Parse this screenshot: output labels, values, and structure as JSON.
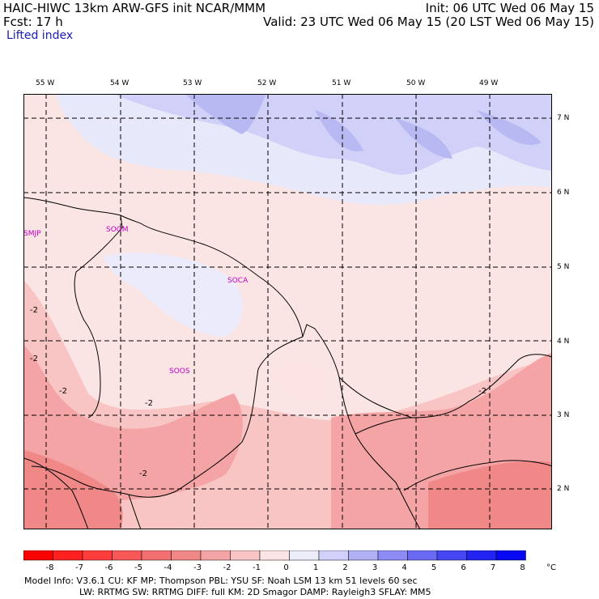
{
  "header": {
    "line1_left": "HAIC-HIWC 13km ARW-GFS init   NCAR/MMM",
    "line2_left": "Fcst:    17 h",
    "line1_right": "Init: 06 UTC Wed 06 May 15",
    "line2_right": "Valid: 23 UTC Wed 06 May 15 (20 LST Wed 06 May 15)",
    "field_name": "Lifted index"
  },
  "map": {
    "lon_labels": [
      "55 W",
      "54 W",
      "53 W",
      "52 W",
      "51 W",
      "50 W",
      "49 W"
    ],
    "lat_labels": [
      "7 N",
      "6 N",
      "5 N",
      "4 N",
      "3 N",
      "2 N"
    ],
    "stations": [
      "SMJP",
      "SOGM",
      "SOCA",
      "SOOS"
    ],
    "contour_labels": [
      "-2",
      "-2",
      "-2",
      "-2",
      "-2",
      "-2"
    ],
    "colors": {
      "grid": "#000000",
      "coast": "#000000",
      "station": "#c000c0"
    }
  },
  "colorbar": {
    "tick_labels": [
      "-8",
      "-7",
      "-6",
      "-5",
      "-4",
      "-3",
      "-2",
      "-1",
      "0",
      "1",
      "2",
      "3",
      "4",
      "5",
      "6",
      "7",
      "8"
    ],
    "unit": "°C",
    "colors": [
      "#ff0000",
      "#ff2020",
      "#ff3c3c",
      "#f85858",
      "#f47070",
      "#f08888",
      "#f4a4a4",
      "#f8c4c4",
      "#fde4e4",
      "#ececfb",
      "#d0d0fa",
      "#b0b0f6",
      "#8c8cf4",
      "#6a6af2",
      "#4646f2",
      "#2424f2",
      "#0808f4"
    ]
  },
  "footer": {
    "line1": "Model Info: V3.6.1    CU: KF      MP: Thompson    PBL: YSU      SF: Noah LSM     13 km   51 levels   60 sec",
    "line2": "LW: RRTMG    SW: RRTMG  DIFF: full    KM: 2D Smagor DAMP: Rayleigh3  SFLAY: MM5"
  }
}
